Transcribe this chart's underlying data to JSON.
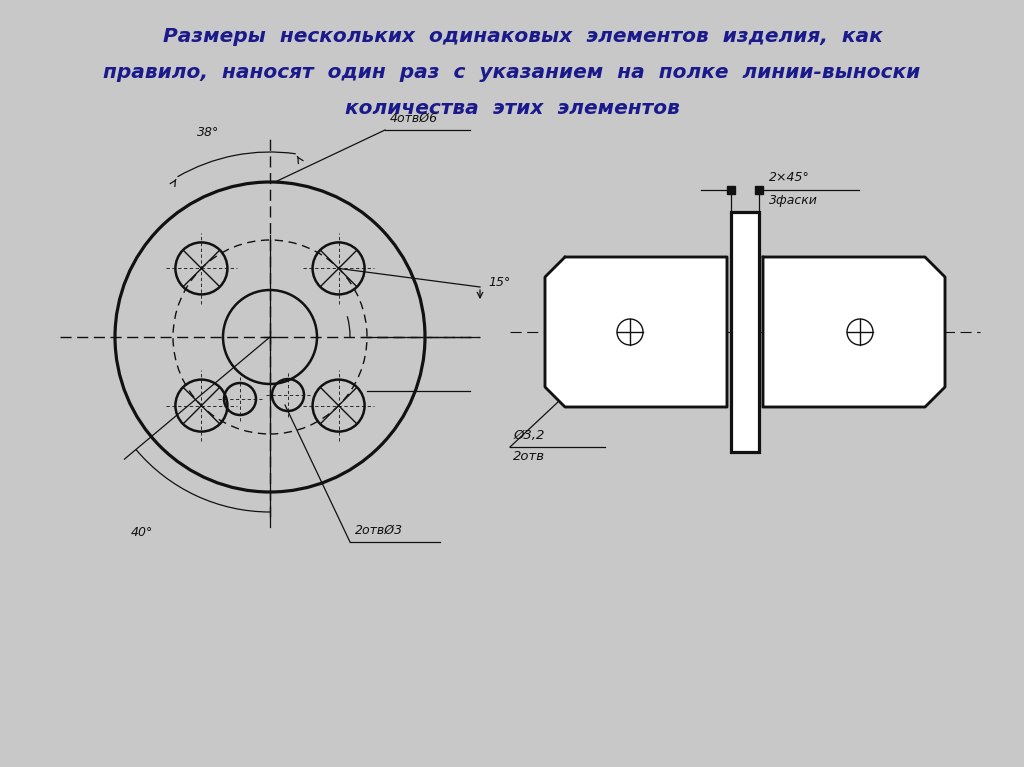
{
  "bg_color": "#c8c8c8",
  "title_color": "#1a1a8c",
  "line_color": "#111111",
  "annotation_4otv_text": "4отвØ6",
  "annotation_2otv_text": "2отвØ3",
  "angle_38_text": "38°",
  "angle_40_text": "40°",
  "angle_15_text": "15°",
  "right_label_top": "2×45°",
  "right_label_top2": "3фаски",
  "right_label_bot": "Ø3,2",
  "right_label_bot2": "2отв"
}
